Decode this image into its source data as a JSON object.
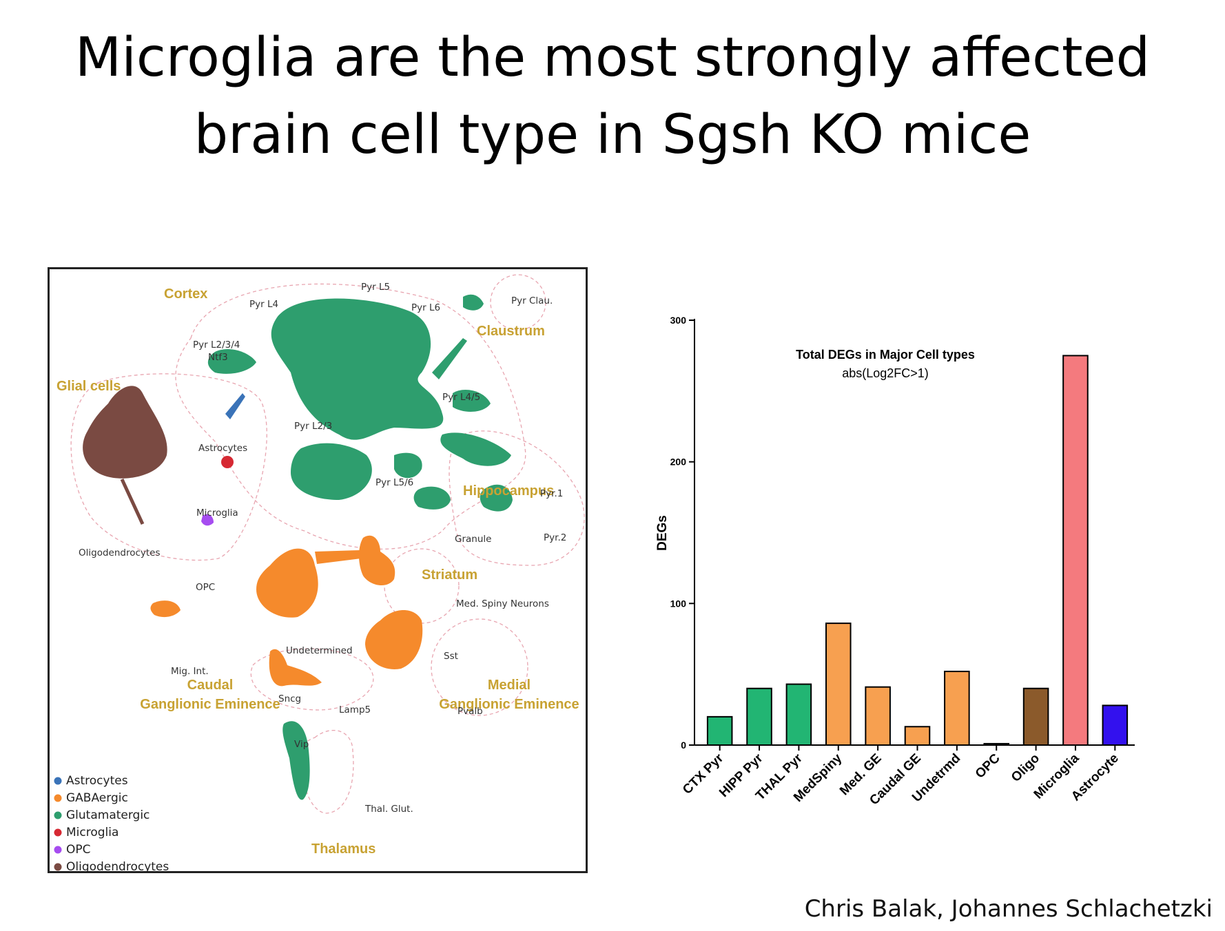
{
  "slide": {
    "title_line1": "Microglia are the most strongly affected",
    "title_line2": "brain cell type in Sgsh KO mice",
    "credit": "Chris Balak, Johannes Schlachetzki"
  },
  "umap": {
    "regions": {
      "cortex": "Cortex",
      "claustrum": "Claustrum",
      "glial": "Glial cells",
      "hippocampus": "Hippocampus",
      "striatum": "Striatum",
      "caudal_ge": [
        "Caudal",
        "Ganglionic Eminence"
      ],
      "medial_ge": [
        "Medial",
        "Ganglionic Eminence"
      ],
      "thalamus": "Thalamus"
    },
    "cluster_labels": {
      "pyr_l5": "Pyr L5",
      "pyr_l4": "Pyr L4",
      "pyr_l6": "Pyr L6",
      "pyr_clau": "Pyr Clau.",
      "pyr_l234": "Pyr L2/3/4",
      "ntf3": "Ntf3",
      "pyr_l45": "Pyr L4/5",
      "pyr_l23": "Pyr L2/3",
      "astrocytes": "Astrocytes",
      "pyr_l56": "Pyr L5/6",
      "pyr1": "Pyr.1",
      "microglia": "Microglia",
      "granule": "Granule",
      "pyr2": "Pyr.2",
      "oligodendrocytes": "Oligodendrocytes",
      "opc": "OPC",
      "msn": "Med. Spiny Neurons",
      "undetermined": "Undetermined",
      "sst": "Sst",
      "mig_int": "Mig. Int.",
      "sncg": "Sncg",
      "lamp5": "Lamp5",
      "pvalb": "Pvalb",
      "vip": "Vip",
      "thal_glut": "Thal. Glut."
    },
    "legend": [
      {
        "label": "Astrocytes",
        "color": "#3a73b8"
      },
      {
        "label": "GABAergic",
        "color": "#f58a2c"
      },
      {
        "label": "Glutamatergic",
        "color": "#2e9e6e"
      },
      {
        "label": "Microglia",
        "color": "#d62832"
      },
      {
        "label": "OPC",
        "color": "#a64cf0"
      },
      {
        "label": "Oligodendrocytes",
        "color": "#7a4a42"
      }
    ]
  },
  "chart_data": {
    "type": "bar",
    "title": "Total DEGs in Major Cell types",
    "subtitle": "abs(Log2FC>1)",
    "xlabel": "",
    "ylabel": "DEGs",
    "ylim": [
      0,
      300
    ],
    "yticks": [
      0,
      100,
      200,
      300
    ],
    "grid": false,
    "categories": [
      "CTX Pyr",
      "HIPP Pyr",
      "THAL Pyr",
      "MedSpiny",
      "Med. GE",
      "Caudal GE",
      "Undetrmd",
      "OPC",
      "Oligo",
      "Microglia",
      "Astrocyte"
    ],
    "values": [
      20,
      40,
      43,
      86,
      41,
      13,
      52,
      1,
      40,
      275,
      28
    ],
    "colors": [
      "#22b573",
      "#22b573",
      "#22b573",
      "#f7a050",
      "#f7a050",
      "#f7a050",
      "#f7a050",
      "#2e9e6e",
      "#8b5a2b",
      "#f47a7e",
      "#3311ee"
    ]
  }
}
